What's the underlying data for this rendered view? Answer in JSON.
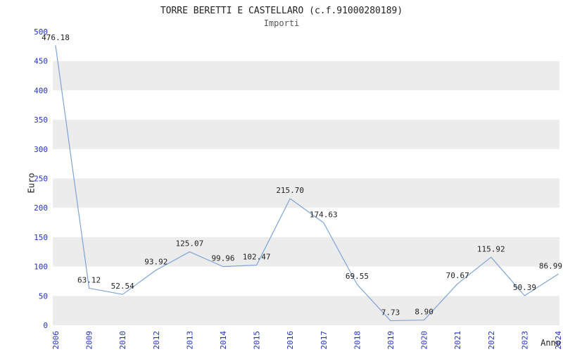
{
  "chart_data": {
    "type": "line",
    "title": "TORRE BERETTI E CASTELLARO (c.f.91000280189)",
    "subtitle": "Importi",
    "xlabel": "Anno",
    "ylabel": "Euro",
    "categories": [
      "2006",
      "2009",
      "2010",
      "2012",
      "2013",
      "2014",
      "2015",
      "2016",
      "2017",
      "2018",
      "2019",
      "2020",
      "2021",
      "2022",
      "2023",
      "2024"
    ],
    "values": [
      476.18,
      63.12,
      52.54,
      93.92,
      125.07,
      99.96,
      102.47,
      215.7,
      174.63,
      69.55,
      7.73,
      8.9,
      70.67,
      115.92,
      50.39,
      86.99
    ],
    "point_labels": [
      "476.18",
      "63.12",
      "52.54",
      "93.92",
      "125.07",
      "99.96",
      "102.47",
      "215.70",
      "174.63",
      "69.55",
      "7.73",
      "8.90",
      "70.67",
      "115.92",
      "50.39",
      "86.99"
    ],
    "ylim": [
      0,
      500
    ],
    "ytick_step": 50,
    "ytick_labels": [
      "0",
      "50",
      "100",
      "150",
      "200",
      "250",
      "300",
      "350",
      "400",
      "450",
      "500"
    ],
    "grid": "alternating-horizontal-bands",
    "legend": "none",
    "colors": {
      "line": "#7da4d6",
      "band": "#ececec",
      "band_alt": "#ffffff",
      "tick_label": "#2233bb",
      "point_label": "#222222",
      "title": "#222222",
      "subtitle": "#555555"
    }
  }
}
